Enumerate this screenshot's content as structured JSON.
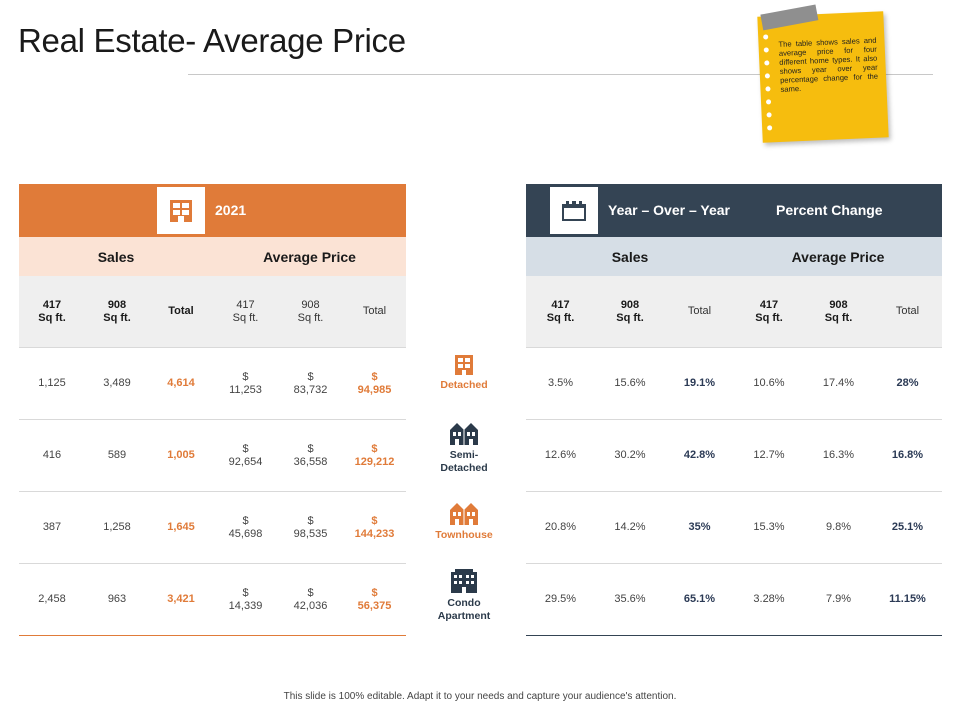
{
  "title": "Real Estate- Average Price",
  "note": "The table shows sales and average price for four different home types. It also shows year over year percentage change for the same.",
  "left": {
    "header": "2021",
    "icon": "building-icon",
    "groups": {
      "sales": "Sales",
      "avg": "Average Price"
    },
    "sub": {
      "c1a": "417",
      "c1b": "Sq ft.",
      "c2a": "908",
      "c2b": "Sq ft.",
      "c3": "Total",
      "c4a": "417",
      "c4b": "Sq ft.",
      "c5a": "908",
      "c5b": "Sq ft.",
      "c6": "Total"
    },
    "rows": [
      {
        "s417": "1,125",
        "s908": "3,489",
        "stot": "4,614",
        "p417c": "$",
        "p417": "11,253",
        "p908c": "$",
        "p908": "83,732",
        "ptotc": "$",
        "ptot": "94,985"
      },
      {
        "s417": "416",
        "s908": "589",
        "stot": "1,005",
        "p417c": "$",
        "p417": "92,654",
        "p908c": "$",
        "p908": "36,558",
        "ptotc": "$",
        "ptot": "129,212"
      },
      {
        "s417": "387",
        "s908": "1,258",
        "stot": "1,645",
        "p417c": "$",
        "p417": "45,698",
        "p908c": "$",
        "p908": "98,535",
        "ptotc": "$",
        "ptot": "144,233"
      },
      {
        "s417": "2,458",
        "s908": "963",
        "stot": "3,421",
        "p417c": "$",
        "p417": "14,339",
        "p908c": "$",
        "p908": "42,036",
        "ptotc": "$",
        "ptot": "56,375"
      }
    ]
  },
  "right": {
    "header_a": "Year – Over – Year",
    "header_b": "Percent Change",
    "icon": "calendar-icon",
    "groups": {
      "sales": "Sales",
      "avg": "Average Price"
    },
    "sub": {
      "c1a": "417",
      "c1b": "Sq ft.",
      "c2a": "908",
      "c2b": "Sq ft.",
      "c3": "Total",
      "c4a": "417",
      "c4b": "Sq ft.",
      "c5a": "908",
      "c5b": "Sq ft.",
      "c6": "Total"
    },
    "rows": [
      {
        "s417": "3.5%",
        "s908": "15.6%",
        "stot": "19.1%",
        "p417": "10.6%",
        "p908": "17.4%",
        "ptot": "28%"
      },
      {
        "s417": "12.6%",
        "s908": "30.2%",
        "stot": "42.8%",
        "p417": "12.7%",
        "p908": "16.3%",
        "ptot": "16.8%"
      },
      {
        "s417": "20.8%",
        "s908": "14.2%",
        "stot": "35%",
        "p417": "15.3%",
        "p908": "9.8%",
        "ptot": "25.1%"
      },
      {
        "s417": "29.5%",
        "s908": "35.6%",
        "stot": "65.1%",
        "p417": "3.28%",
        "p908": "7.9%",
        "ptot": "11.15%"
      }
    ]
  },
  "categories": [
    {
      "line1": "Detached",
      "line2": "",
      "color": "#e07b39",
      "icon": "detached-house-icon"
    },
    {
      "line1": "Semi-",
      "line2": "Detached",
      "color": "#2b3a4a",
      "icon": "semi-detached-house-icon"
    },
    {
      "line1": "Townhouse",
      "line2": "",
      "color": "#e07b39",
      "icon": "townhouse-icon"
    },
    {
      "line1": "Condo",
      "line2": "Apartment",
      "color": "#2b3a4a",
      "icon": "condo-apartment-icon"
    }
  ],
  "footer": "This slide is 100% editable. Adapt it to your needs and capture your audience's attention.",
  "colors": {
    "orange": "#e07b39",
    "navy": "#344454",
    "note": "#f6bd0e"
  }
}
